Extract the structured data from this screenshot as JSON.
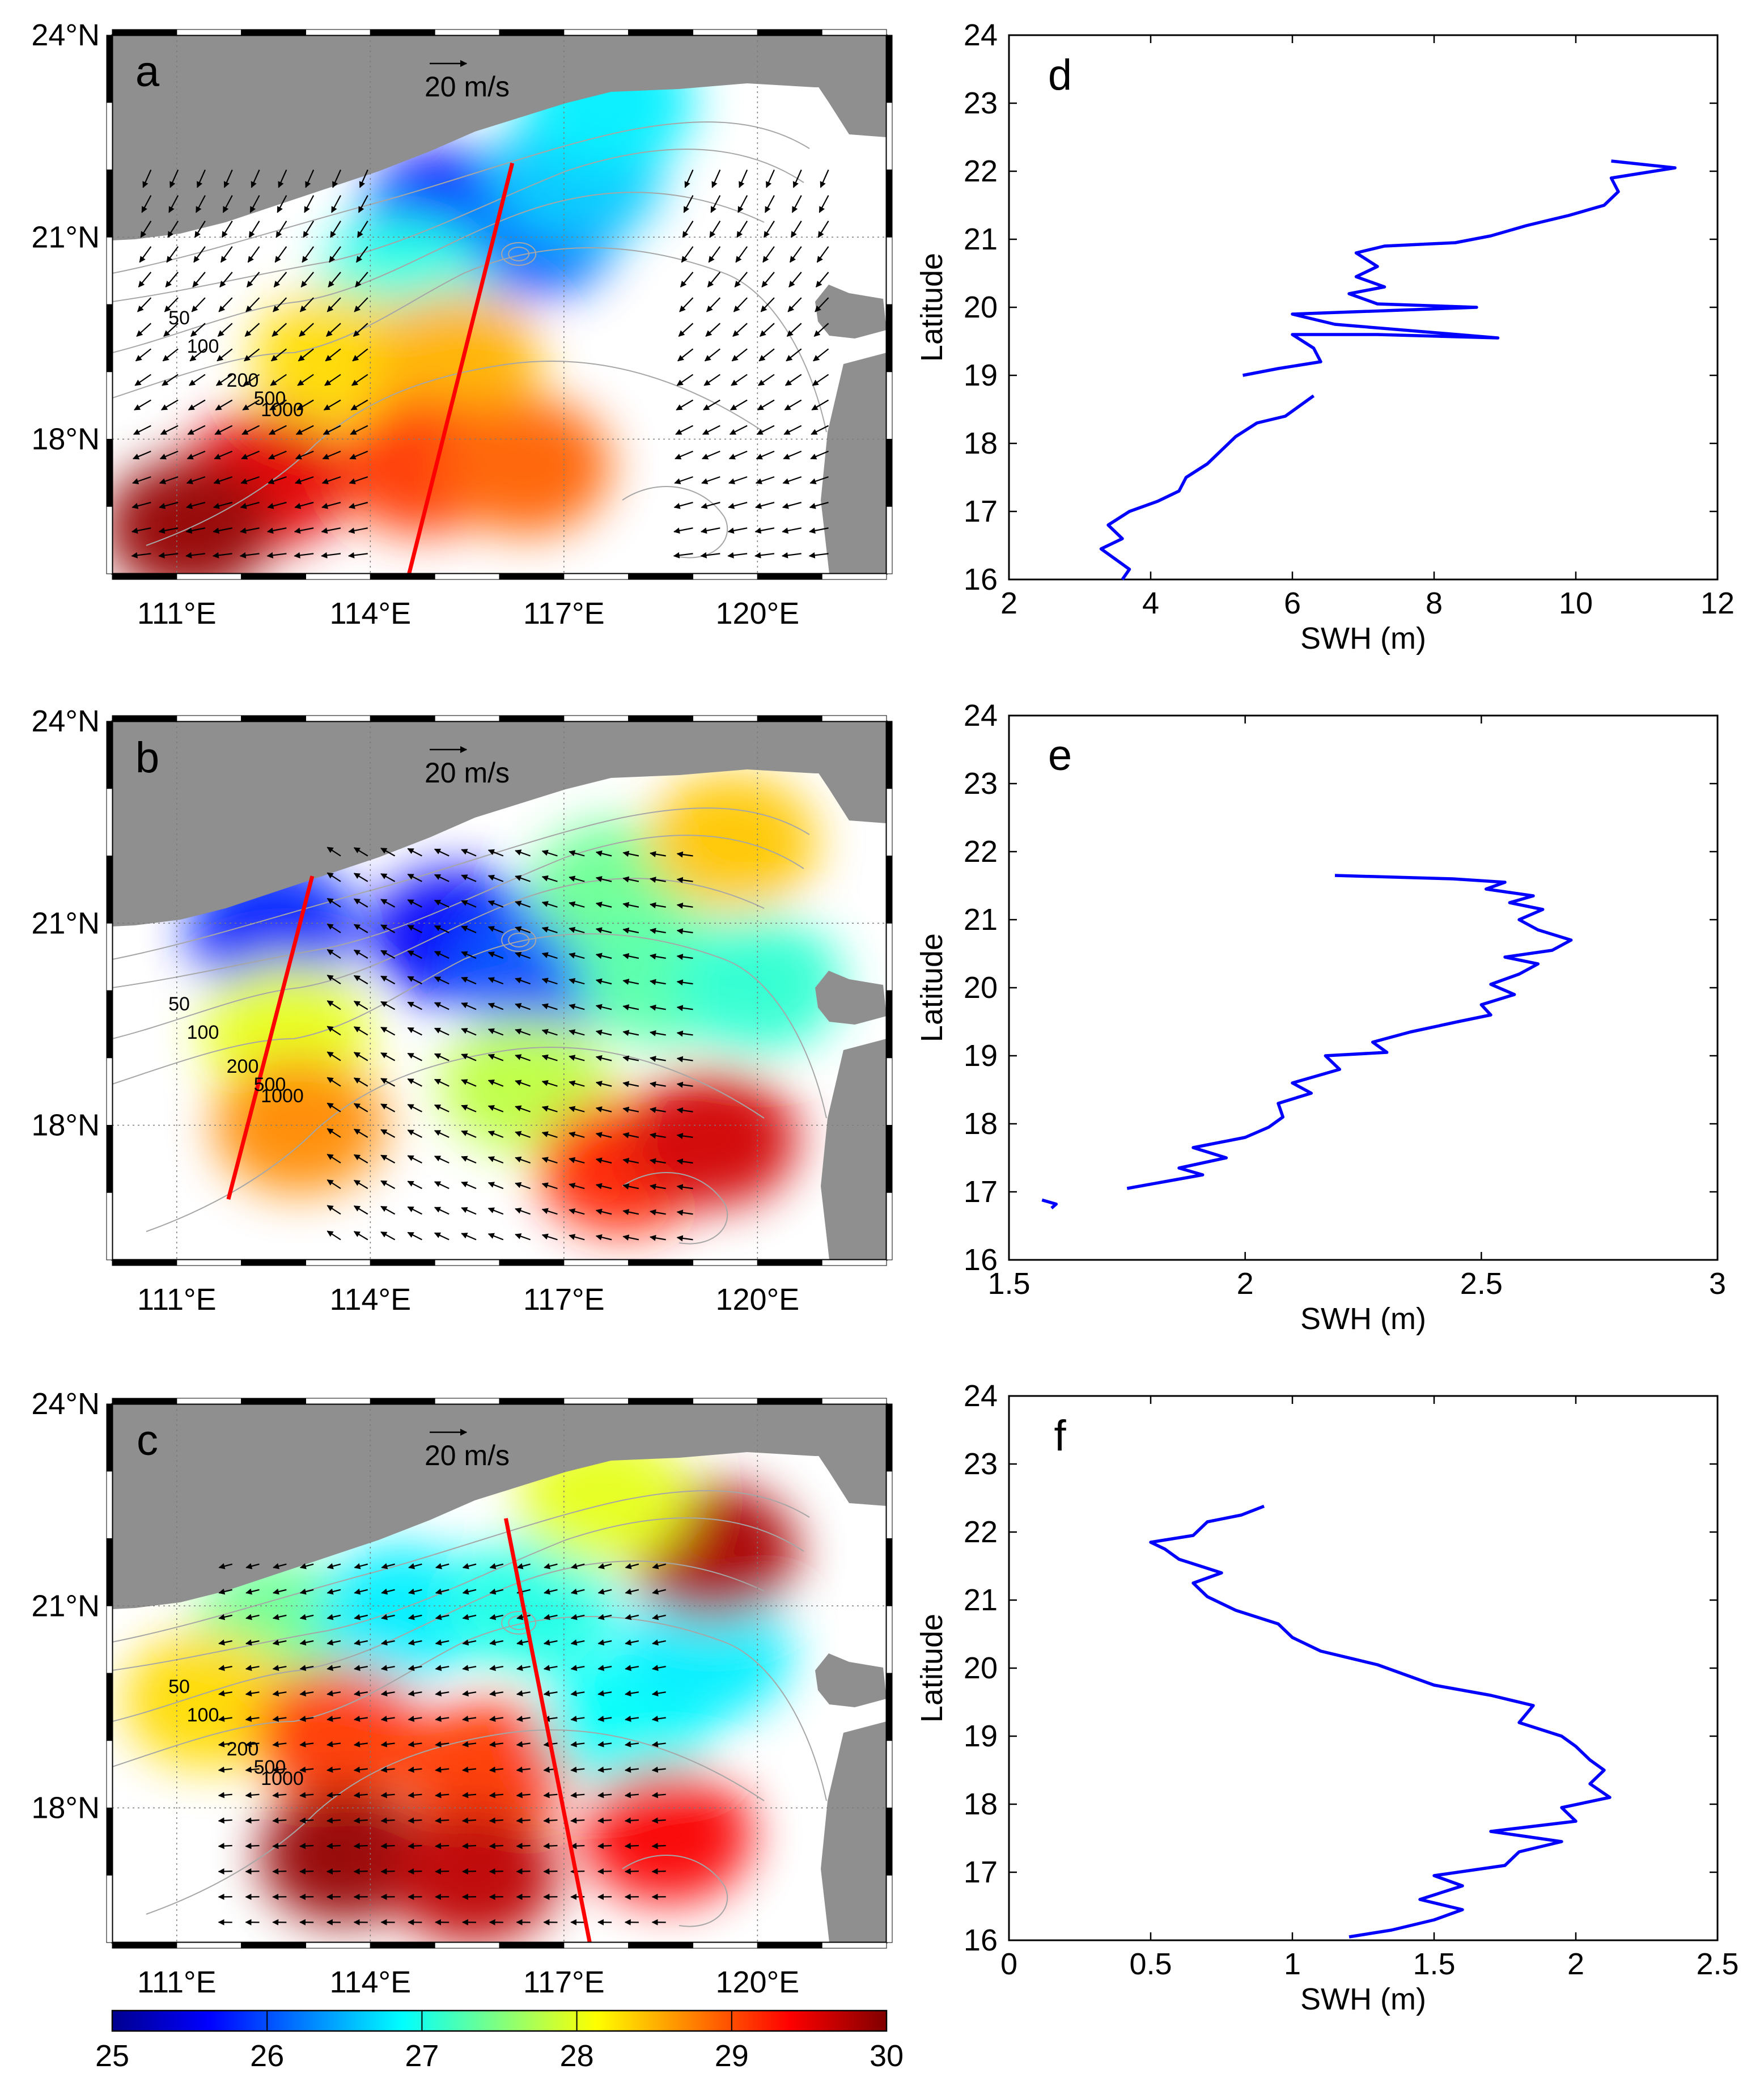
{
  "figure": {
    "colorbar": {
      "ticks": [
        "25",
        "26",
        "27",
        "28",
        "29",
        "30"
      ],
      "min": 25,
      "max": 30,
      "colors": [
        "#00008f",
        "#0000ff",
        "#0080ff",
        "#00ffff",
        "#80ff80",
        "#ffff00",
        "#ff8000",
        "#ff0000",
        "#800000"
      ]
    },
    "colors": {
      "land": "#8f8f8f",
      "line": "#0000ff",
      "track": "#ff0000",
      "contour": "#a6a6a6",
      "arrow": "#000000"
    }
  },
  "map_panels": [
    {
      "label": "a",
      "lon_range": [
        110,
        122
      ],
      "lat_range": [
        16,
        24
      ],
      "x_ticks": [
        "111°E",
        "114°E",
        "117°E",
        "120°E"
      ],
      "y_ticks": [
        "24°N",
        "21°N",
        "18°N"
      ],
      "scale_label": "20 m/s",
      "contour_labels": [
        "50",
        "100",
        "200",
        "500",
        "1000"
      ],
      "track": {
        "start": [
          114.6,
          16.0
        ],
        "end": [
          116.2,
          22.1
        ]
      },
      "sst_field": [
        {
          "lon": 115.2,
          "lat": 21.3,
          "sst": 25.7
        },
        {
          "lon": 116.5,
          "lat": 21.1,
          "sst": 26.1
        },
        {
          "lon": 117.2,
          "lat": 21.9,
          "sst": 26.6
        },
        {
          "lon": 114.5,
          "lat": 20.3,
          "sst": 27.0
        },
        {
          "lon": 113.5,
          "lat": 19.2,
          "sst": 28.3
        },
        {
          "lon": 115.3,
          "lat": 19.2,
          "sst": 28.5
        },
        {
          "lon": 112.4,
          "lat": 17.4,
          "sst": 29.5
        },
        {
          "lon": 114.8,
          "lat": 17.6,
          "sst": 29.1
        },
        {
          "lon": 116.4,
          "lat": 17.6,
          "sst": 28.9
        },
        {
          "lon": 111.2,
          "lat": 16.7,
          "sst": 29.9
        },
        {
          "lon": 117.7,
          "lat": 23.0,
          "sst": 26.8
        }
      ]
    },
    {
      "label": "b",
      "lon_range": [
        110,
        122
      ],
      "lat_range": [
        16,
        24
      ],
      "x_ticks": [
        "111°E",
        "114°E",
        "117°E",
        "120°E"
      ],
      "y_ticks": [
        "24°N",
        "21°N",
        "18°N"
      ],
      "scale_label": "20 m/s",
      "contour_labels": [
        "50",
        "100",
        "200",
        "500",
        "1000"
      ],
      "track": {
        "start": [
          111.8,
          16.9
        ],
        "end": [
          113.1,
          21.7
        ]
      },
      "sst_field": [
        {
          "lon": 112.5,
          "lat": 20.9,
          "sst": 25.8
        },
        {
          "lon": 112.7,
          "lat": 19.4,
          "sst": 28.0
        },
        {
          "lon": 112.9,
          "lat": 18.0,
          "sst": 28.7
        },
        {
          "lon": 115.3,
          "lat": 20.8,
          "sst": 25.6
        },
        {
          "lon": 116.6,
          "lat": 20.3,
          "sst": 26.0
        },
        {
          "lon": 117.8,
          "lat": 21.5,
          "sst": 27.4
        },
        {
          "lon": 118.5,
          "lat": 20.2,
          "sst": 27.3
        },
        {
          "lon": 120.0,
          "lat": 20.1,
          "sst": 27.1
        },
        {
          "lon": 116.4,
          "lat": 18.6,
          "sst": 27.8
        },
        {
          "lon": 117.9,
          "lat": 17.4,
          "sst": 29.2
        },
        {
          "lon": 119.3,
          "lat": 17.8,
          "sst": 29.6
        },
        {
          "lon": 119.6,
          "lat": 22.2,
          "sst": 28.4
        }
      ]
    },
    {
      "label": "c",
      "lon_range": [
        110,
        122
      ],
      "lat_range": [
        16,
        24
      ],
      "x_ticks": [
        "111°E",
        "114°E",
        "117°E",
        "120°E"
      ],
      "y_ticks": [
        "24°N",
        "21°N",
        "18°N"
      ],
      "scale_label": "20 m/s",
      "contour_labels": [
        "50",
        "100",
        "200",
        "500",
        "1000"
      ],
      "track": {
        "start": [
          117.4,
          16.0
        ],
        "end": [
          116.1,
          22.3
        ]
      },
      "sst_field": [
        {
          "lon": 112.6,
          "lat": 20.7,
          "sst": 27.4
        },
        {
          "lon": 114.5,
          "lat": 20.9,
          "sst": 26.8
        },
        {
          "lon": 116.5,
          "lat": 21.0,
          "sst": 27.0
        },
        {
          "lon": 111.5,
          "lat": 19.6,
          "sst": 28.3
        },
        {
          "lon": 113.5,
          "lat": 19.1,
          "sst": 29.1
        },
        {
          "lon": 115.8,
          "lat": 18.6,
          "sst": 29.1
        },
        {
          "lon": 113.6,
          "lat": 17.3,
          "sst": 29.9
        },
        {
          "lon": 115.6,
          "lat": 17.0,
          "sst": 29.7
        },
        {
          "lon": 118.0,
          "lat": 19.3,
          "sst": 26.9
        },
        {
          "lon": 119.2,
          "lat": 20.3,
          "sst": 26.8
        },
        {
          "lon": 119.3,
          "lat": 21.8,
          "sst": 29.8
        },
        {
          "lon": 118.6,
          "lat": 17.6,
          "sst": 29.4
        },
        {
          "lon": 117.6,
          "lat": 22.6,
          "sst": 28.0
        }
      ]
    }
  ],
  "chart_data": [
    {
      "type": "line",
      "label": "d",
      "xlabel": "SWH (m)",
      "ylabel": "Latitude",
      "xlim": [
        2,
        12
      ],
      "ylim": [
        16,
        24
      ],
      "xticks": [
        "2",
        "4",
        "6",
        "8",
        "10",
        "12"
      ],
      "yticks": [
        "16",
        "17",
        "18",
        "19",
        "20",
        "21",
        "22",
        "23",
        "24"
      ],
      "segments": [
        [
          [
            3.6,
            16.0
          ],
          [
            3.7,
            16.15
          ],
          [
            3.5,
            16.3
          ],
          [
            3.3,
            16.45
          ],
          [
            3.6,
            16.6
          ],
          [
            3.4,
            16.8
          ],
          [
            3.7,
            17.0
          ],
          [
            4.1,
            17.15
          ],
          [
            4.4,
            17.3
          ],
          [
            4.5,
            17.5
          ],
          [
            4.8,
            17.7
          ],
          [
            5.0,
            17.9
          ],
          [
            5.2,
            18.1
          ],
          [
            5.5,
            18.3
          ],
          [
            5.9,
            18.4
          ],
          [
            6.1,
            18.55
          ],
          [
            6.3,
            18.7
          ]
        ],
        [
          [
            5.3,
            19.0
          ],
          [
            5.8,
            19.1
          ],
          [
            6.4,
            19.2
          ],
          [
            6.3,
            19.4
          ],
          [
            6.0,
            19.6
          ],
          [
            7.2,
            19.6
          ],
          [
            8.9,
            19.55
          ],
          [
            6.6,
            19.75
          ],
          [
            6.0,
            19.9
          ],
          [
            8.6,
            20.0
          ],
          [
            7.2,
            20.05
          ],
          [
            6.8,
            20.2
          ],
          [
            7.3,
            20.3
          ],
          [
            6.9,
            20.45
          ],
          [
            7.2,
            20.6
          ],
          [
            6.9,
            20.8
          ],
          [
            7.3,
            20.9
          ],
          [
            8.3,
            20.95
          ],
          [
            8.8,
            21.05
          ],
          [
            9.3,
            21.2
          ],
          [
            9.9,
            21.35
          ],
          [
            10.4,
            21.5
          ],
          [
            10.6,
            21.7
          ],
          [
            10.5,
            21.9
          ],
          [
            11.1,
            22.0
          ],
          [
            11.4,
            22.05
          ],
          [
            10.5,
            22.15
          ]
        ]
      ]
    },
    {
      "type": "line",
      "label": "e",
      "xlabel": "SWH (m)",
      "ylabel": "Latitude",
      "xlim": [
        1.5,
        3
      ],
      "ylim": [
        16,
        24
      ],
      "xticks": [
        "1.5",
        "2",
        "2.5",
        "3"
      ],
      "yticks": [
        "16",
        "17",
        "18",
        "19",
        "20",
        "21",
        "22",
        "23",
        "24"
      ],
      "segments": [
        [
          [
            1.57,
            16.88
          ],
          [
            1.6,
            16.82
          ],
          [
            1.59,
            16.76
          ]
        ],
        [
          [
            1.75,
            17.05
          ],
          [
            1.83,
            17.15
          ],
          [
            1.91,
            17.25
          ],
          [
            1.86,
            17.35
          ],
          [
            1.96,
            17.5
          ],
          [
            1.89,
            17.65
          ],
          [
            2.0,
            17.8
          ],
          [
            2.05,
            17.95
          ],
          [
            2.08,
            18.1
          ],
          [
            2.07,
            18.3
          ],
          [
            2.14,
            18.45
          ],
          [
            2.1,
            18.6
          ],
          [
            2.15,
            18.7
          ],
          [
            2.2,
            18.8
          ],
          [
            2.17,
            19.0
          ],
          [
            2.3,
            19.05
          ],
          [
            2.27,
            19.2
          ],
          [
            2.35,
            19.35
          ],
          [
            2.45,
            19.5
          ],
          [
            2.52,
            19.6
          ],
          [
            2.5,
            19.75
          ],
          [
            2.57,
            19.9
          ],
          [
            2.52,
            20.05
          ],
          [
            2.58,
            20.2
          ],
          [
            2.62,
            20.35
          ],
          [
            2.55,
            20.45
          ],
          [
            2.65,
            20.55
          ],
          [
            2.69,
            20.7
          ],
          [
            2.62,
            20.85
          ],
          [
            2.58,
            21.0
          ],
          [
            2.63,
            21.15
          ],
          [
            2.56,
            21.25
          ],
          [
            2.61,
            21.35
          ],
          [
            2.51,
            21.45
          ],
          [
            2.55,
            21.55
          ],
          [
            2.44,
            21.6
          ],
          [
            2.19,
            21.65
          ]
        ]
      ]
    },
    {
      "type": "line",
      "label": "f",
      "xlabel": "SWH (m)",
      "ylabel": "Latitude",
      "xlim": [
        0,
        2.5
      ],
      "ylim": [
        16,
        24
      ],
      "xticks": [
        "0",
        "0.5",
        "1",
        "1.5",
        "2",
        "2.5"
      ],
      "yticks": [
        "16",
        "17",
        "18",
        "19",
        "20",
        "21",
        "22",
        "23",
        "24"
      ],
      "segments": [
        [
          [
            1.2,
            16.05
          ],
          [
            1.35,
            16.15
          ],
          [
            1.5,
            16.3
          ],
          [
            1.6,
            16.45
          ],
          [
            1.45,
            16.6
          ],
          [
            1.6,
            16.8
          ],
          [
            1.5,
            16.95
          ],
          [
            1.75,
            17.1
          ],
          [
            1.8,
            17.3
          ],
          [
            1.95,
            17.45
          ],
          [
            1.7,
            17.6
          ],
          [
            2.0,
            17.75
          ],
          [
            1.95,
            17.95
          ],
          [
            2.12,
            18.1
          ],
          [
            2.05,
            18.3
          ],
          [
            2.1,
            18.5
          ],
          [
            2.05,
            18.65
          ],
          [
            2.0,
            18.85
          ],
          [
            1.95,
            19.0
          ],
          [
            1.8,
            19.2
          ],
          [
            1.85,
            19.45
          ],
          [
            1.7,
            19.6
          ],
          [
            1.5,
            19.75
          ],
          [
            1.4,
            19.9
          ],
          [
            1.3,
            20.05
          ],
          [
            1.1,
            20.25
          ],
          [
            1.0,
            20.45
          ],
          [
            0.95,
            20.65
          ],
          [
            0.8,
            20.85
          ],
          [
            0.7,
            21.05
          ],
          [
            0.65,
            21.25
          ],
          [
            0.75,
            21.4
          ],
          [
            0.6,
            21.6
          ],
          [
            0.55,
            21.75
          ],
          [
            0.5,
            21.85
          ],
          [
            0.65,
            21.95
          ],
          [
            0.7,
            22.15
          ],
          [
            0.82,
            22.25
          ],
          [
            0.9,
            22.38
          ]
        ]
      ]
    }
  ]
}
